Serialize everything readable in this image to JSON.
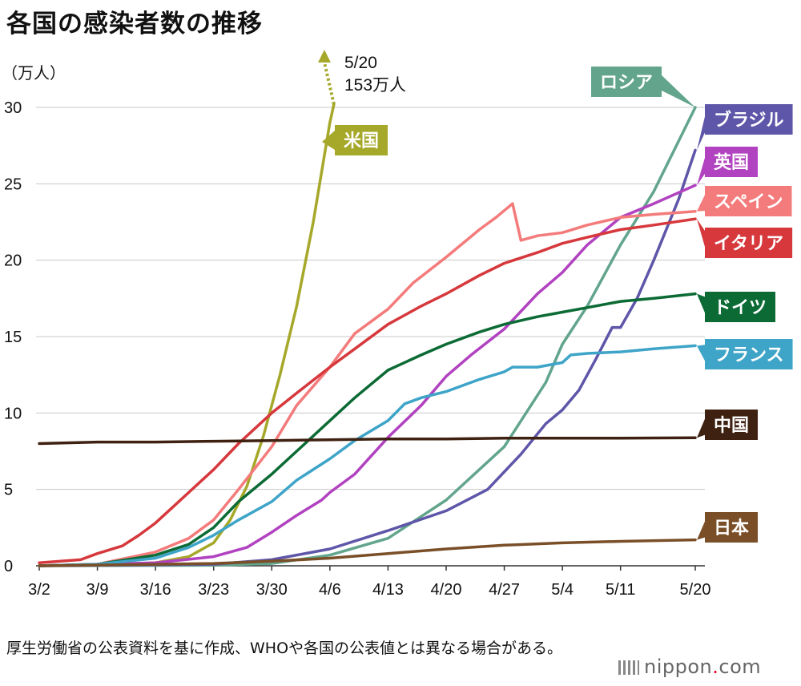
{
  "title": "各国の感染者数の推移",
  "footnote": "厚生労働省の公表資料を基に作成、WHOや各国の公表値とは異なる場合がある。",
  "brand": {
    "name": "nippon",
    "dot": ".",
    "tld": "com"
  },
  "chart_data": {
    "type": "line",
    "ylabel": "（万人）",
    "ylim": [
      0,
      30
    ],
    "y_ticks": [
      0,
      5,
      10,
      15,
      20,
      25,
      30
    ],
    "grid": "horizontal",
    "x_ticks": [
      "3/2",
      "3/9",
      "3/16",
      "3/23",
      "3/30",
      "4/6",
      "4/13",
      "4/20",
      "4/27",
      "5/4",
      "5/11",
      "5/20"
    ],
    "x_tick_days": [
      0,
      7,
      14,
      21,
      28,
      35,
      42,
      49,
      56,
      63,
      70,
      79
    ],
    "annotation": {
      "line1": "5/20",
      "line2": "153万人"
    },
    "series": [
      {
        "name": "米国",
        "color": "#a6a82a",
        "label_at": 175,
        "points": [
          [
            0,
            0.01
          ],
          [
            7,
            0.03
          ],
          [
            14,
            0.2
          ],
          [
            18,
            0.6
          ],
          [
            21,
            1.5
          ],
          [
            23,
            3.0
          ],
          [
            25,
            5.2
          ],
          [
            27,
            8.5
          ],
          [
            29,
            12.5
          ],
          [
            31,
            17.0
          ],
          [
            33,
            22.5
          ],
          [
            35,
            29.0
          ],
          [
            36,
            31.5
          ]
        ]
      },
      {
        "name": "ロシア",
        "color": "#62a58c",
        "label_at": 102,
        "points": [
          [
            0,
            0
          ],
          [
            21,
            0.03
          ],
          [
            28,
            0.15
          ],
          [
            35,
            0.7
          ],
          [
            42,
            1.8
          ],
          [
            49,
            4.3
          ],
          [
            56,
            7.8
          ],
          [
            61,
            12.0
          ],
          [
            63,
            14.5
          ],
          [
            66,
            17.0
          ],
          [
            70,
            21.0
          ],
          [
            74,
            24.5
          ],
          [
            79,
            30.0
          ]
        ]
      },
      {
        "name": "ブラジル",
        "color": "#5e56a8",
        "label_at": 149,
        "points": [
          [
            0,
            0
          ],
          [
            21,
            0.1
          ],
          [
            28,
            0.4
          ],
          [
            35,
            1.1
          ],
          [
            42,
            2.3
          ],
          [
            49,
            3.6
          ],
          [
            54,
            5.0
          ],
          [
            58,
            7.3
          ],
          [
            61,
            9.3
          ],
          [
            63,
            10.2
          ],
          [
            65,
            11.5
          ],
          [
            67,
            13.5
          ],
          [
            69,
            15.6
          ],
          [
            70,
            15.6
          ],
          [
            72,
            17.5
          ],
          [
            74,
            20.0
          ],
          [
            77,
            24.0
          ],
          [
            79,
            27.2
          ]
        ]
      },
      {
        "name": "英国",
        "color": "#b142c0",
        "label_at": 202,
        "points": [
          [
            0,
            0
          ],
          [
            14,
            0.2
          ],
          [
            21,
            0.6
          ],
          [
            25,
            1.2
          ],
          [
            28,
            2.2
          ],
          [
            31,
            3.3
          ],
          [
            34,
            4.3
          ],
          [
            35,
            4.8
          ],
          [
            38,
            6.0
          ],
          [
            42,
            8.4
          ],
          [
            46,
            10.5
          ],
          [
            49,
            12.4
          ],
          [
            52,
            13.8
          ],
          [
            56,
            15.5
          ],
          [
            60,
            17.8
          ],
          [
            63,
            19.2
          ],
          [
            66,
            21.0
          ],
          [
            70,
            22.8
          ],
          [
            74,
            23.7
          ],
          [
            79,
            24.9
          ]
        ]
      },
      {
        "name": "スペイン",
        "color": "#f47b7b",
        "label_at": 251,
        "points": [
          [
            0,
            0
          ],
          [
            7,
            0.1
          ],
          [
            14,
            0.9
          ],
          [
            18,
            1.8
          ],
          [
            21,
            3.0
          ],
          [
            24,
            5.0
          ],
          [
            28,
            7.8
          ],
          [
            31,
            10.5
          ],
          [
            35,
            13.0
          ],
          [
            38,
            15.2
          ],
          [
            42,
            16.8
          ],
          [
            45,
            18.5
          ],
          [
            49,
            20.2
          ],
          [
            53,
            22.0
          ],
          [
            55,
            22.8
          ],
          [
            57,
            23.7
          ],
          [
            58,
            21.3
          ],
          [
            60,
            21.6
          ],
          [
            63,
            21.8
          ],
          [
            66,
            22.3
          ],
          [
            70,
            22.8
          ],
          [
            74,
            23.0
          ],
          [
            79,
            23.2
          ]
        ]
      },
      {
        "name": "イタリア",
        "color": "#d6383c",
        "label_at": 303,
        "points": [
          [
            0,
            0.2
          ],
          [
            5,
            0.4
          ],
          [
            7,
            0.8
          ],
          [
            10,
            1.3
          ],
          [
            12,
            2.0
          ],
          [
            14,
            2.8
          ],
          [
            18,
            4.8
          ],
          [
            21,
            6.3
          ],
          [
            24,
            8.0
          ],
          [
            28,
            10.0
          ],
          [
            31,
            11.3
          ],
          [
            35,
            13.0
          ],
          [
            38,
            14.2
          ],
          [
            42,
            15.8
          ],
          [
            46,
            17.0
          ],
          [
            49,
            17.8
          ],
          [
            53,
            19.0
          ],
          [
            56,
            19.8
          ],
          [
            60,
            20.5
          ],
          [
            63,
            21.1
          ],
          [
            66,
            21.5
          ],
          [
            70,
            22.0
          ],
          [
            74,
            22.3
          ],
          [
            79,
            22.7
          ]
        ]
      },
      {
        "name": "ドイツ",
        "color": "#0c6b35",
        "label_at": 383,
        "points": [
          [
            0,
            0
          ],
          [
            7,
            0.1
          ],
          [
            14,
            0.7
          ],
          [
            18,
            1.4
          ],
          [
            21,
            2.5
          ],
          [
            24,
            4.2
          ],
          [
            28,
            6.0
          ],
          [
            31,
            7.5
          ],
          [
            35,
            9.5
          ],
          [
            38,
            11.0
          ],
          [
            42,
            12.8
          ],
          [
            46,
            13.8
          ],
          [
            49,
            14.5
          ],
          [
            53,
            15.3
          ],
          [
            56,
            15.8
          ],
          [
            60,
            16.3
          ],
          [
            63,
            16.6
          ],
          [
            66,
            16.9
          ],
          [
            70,
            17.3
          ],
          [
            74,
            17.5
          ],
          [
            79,
            17.8
          ]
        ]
      },
      {
        "name": "フランス",
        "color": "#3ea4c8",
        "label_at": 442,
        "points": [
          [
            0,
            0
          ],
          [
            7,
            0.1
          ],
          [
            14,
            0.5
          ],
          [
            18,
            1.2
          ],
          [
            21,
            2.0
          ],
          [
            24,
            3.0
          ],
          [
            28,
            4.2
          ],
          [
            31,
            5.6
          ],
          [
            35,
            7.0
          ],
          [
            38,
            8.2
          ],
          [
            42,
            9.5
          ],
          [
            44,
            10.6
          ],
          [
            46,
            11.0
          ],
          [
            49,
            11.4
          ],
          [
            53,
            12.2
          ],
          [
            56,
            12.7
          ],
          [
            57,
            13.0
          ],
          [
            60,
            13.0
          ],
          [
            63,
            13.3
          ],
          [
            64,
            13.8
          ],
          [
            66,
            13.9
          ],
          [
            70,
            14.0
          ],
          [
            74,
            14.2
          ],
          [
            79,
            14.4
          ]
        ]
      },
      {
        "name": "中国",
        "color": "#3e2111",
        "label_at": 530,
        "points": [
          [
            0,
            8.0
          ],
          [
            7,
            8.1
          ],
          [
            14,
            8.1
          ],
          [
            21,
            8.15
          ],
          [
            28,
            8.2
          ],
          [
            35,
            8.25
          ],
          [
            42,
            8.3
          ],
          [
            49,
            8.3
          ],
          [
            56,
            8.35
          ],
          [
            63,
            8.35
          ],
          [
            70,
            8.35
          ],
          [
            79,
            8.38
          ]
        ]
      },
      {
        "name": "日本",
        "color": "#7a4f28",
        "label_at": 658,
        "points": [
          [
            0,
            0
          ],
          [
            14,
            0.1
          ],
          [
            21,
            0.15
          ],
          [
            28,
            0.3
          ],
          [
            35,
            0.5
          ],
          [
            42,
            0.8
          ],
          [
            49,
            1.1
          ],
          [
            56,
            1.35
          ],
          [
            63,
            1.5
          ],
          [
            70,
            1.6
          ],
          [
            79,
            1.7
          ]
        ]
      }
    ]
  }
}
